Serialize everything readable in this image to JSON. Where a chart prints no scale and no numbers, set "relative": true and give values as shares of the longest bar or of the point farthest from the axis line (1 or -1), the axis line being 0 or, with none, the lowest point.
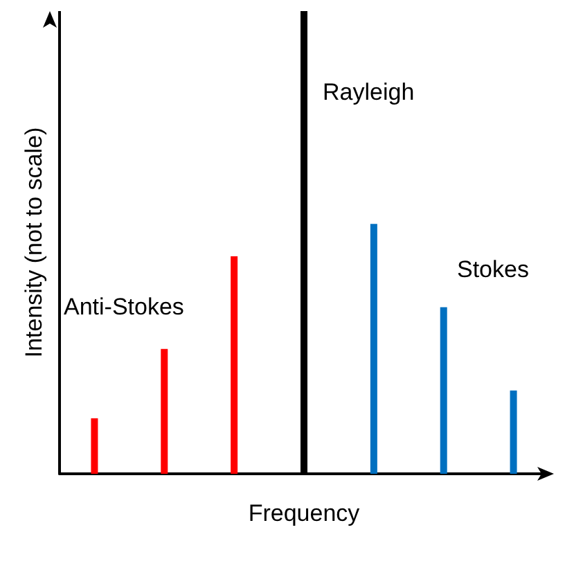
{
  "chart_data": {
    "type": "bar",
    "relative": true,
    "xlabel": "Frequency",
    "ylabel": "Intensity (not to scale)",
    "categories": [
      null,
      null,
      null,
      null,
      null,
      null,
      null
    ],
    "values": [
      0.12,
      0.27,
      0.47,
      1,
      0.54,
      0.36,
      0.18
    ],
    "colors": [
      "#ff0000",
      "#ff0000",
      "#ff0000",
      "#000000",
      "#0070c0",
      "#0070c0",
      "#0070c0"
    ],
    "annotations": [
      "Rayleigh",
      "Anti-Stokes",
      "Stokes"
    ],
    "grid": false
  }
}
